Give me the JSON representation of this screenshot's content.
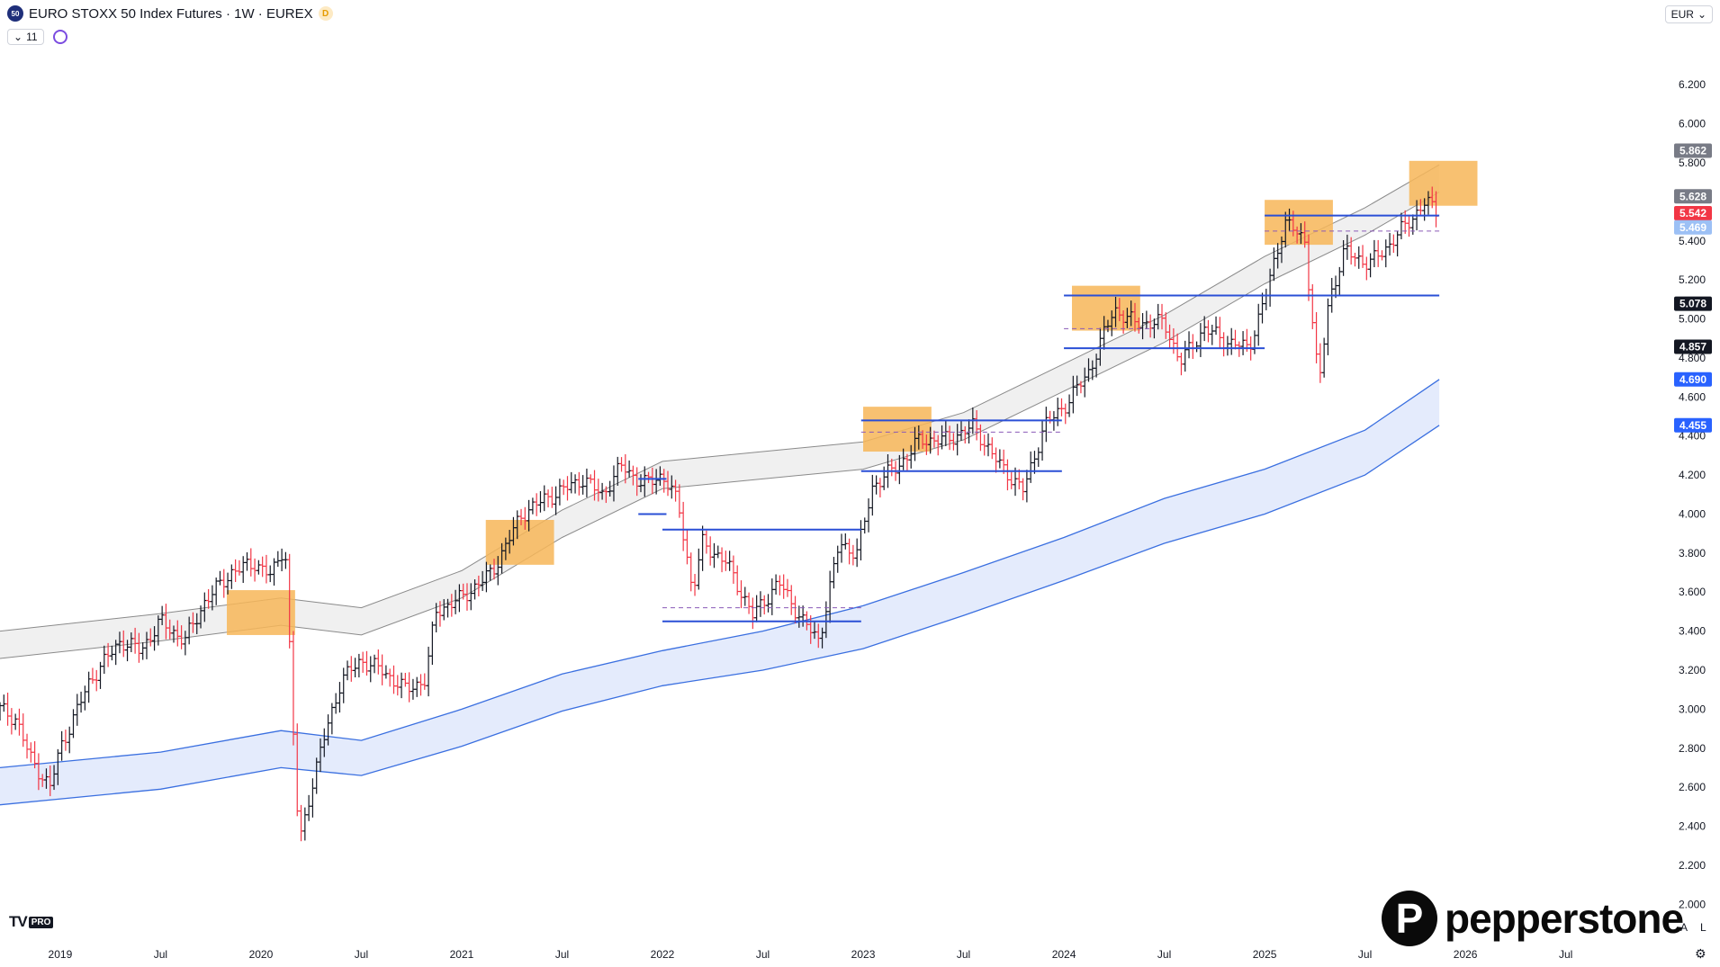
{
  "header": {
    "symbol_badge": "50",
    "title": "EURO STOXX 50 Index Futures · 1W · EUREX",
    "data_badge": "D",
    "indicators_count": "11"
  },
  "currency": "EUR",
  "branding": {
    "tv_mark": "TV",
    "tv_pro": "PRO",
    "broker_mark": "P",
    "broker": "pepperstone"
  },
  "scale_buttons": [
    "A",
    "L"
  ],
  "icons": [
    "chevron-down-icon",
    "indicator-sync-icon",
    "settings-gear-icon"
  ],
  "colors": {
    "up": "#131722",
    "down": "#f23645",
    "hline": "#2a4fd6",
    "zone": "#f7b658",
    "envelope_fill": "#dfe8fb",
    "envelope_line": "#3a6fe0",
    "upper_band_fill": "#ececec",
    "upper_band_line": "#8a8a8a"
  },
  "chart_data": {
    "type": "candlestick",
    "timeframe": "1W",
    "currency": "EUR",
    "x_ticks": [
      "2019",
      "Jul",
      "2020",
      "Jul",
      "2021",
      "Jul",
      "2022",
      "Jul",
      "2023",
      "Jul",
      "2024",
      "Jul",
      "2025",
      "Jul",
      "2026",
      "Jul"
    ],
    "x_tick_dates": [
      2019.0,
      2019.5,
      2020.0,
      2020.5,
      2021.0,
      2021.5,
      2022.0,
      2022.5,
      2023.0,
      2023.5,
      2024.0,
      2024.5,
      2025.0,
      2025.5,
      2026.0,
      2026.5
    ],
    "y_ticks": [
      "2.000",
      "2.200",
      "2.400",
      "2.600",
      "2.800",
      "3.000",
      "3.200",
      "3.400",
      "3.600",
      "3.800",
      "4.000",
      "4.200",
      "4.400",
      "4.600",
      "4.800",
      "5.000",
      "5.200",
      "5.400",
      "5.800",
      "6.000",
      "6.200"
    ],
    "y_tick_values": [
      2000,
      2200,
      2400,
      2600,
      2800,
      3000,
      3200,
      3400,
      3600,
      3800,
      4000,
      4200,
      4400,
      4600,
      4800,
      5000,
      5200,
      5400,
      5800,
      6000,
      6200
    ],
    "ylim": [
      1840,
      6450
    ],
    "xlim": [
      2018.7,
      2026.95
    ],
    "price_labels": [
      {
        "text": "5.862",
        "value": 5862,
        "color": "#787b86"
      },
      {
        "text": "5.628",
        "value": 5628,
        "color": "#787b86"
      },
      {
        "text": "5.542",
        "value": 5542,
        "color": "#f23645"
      },
      {
        "text": "5.469",
        "value": 5469,
        "color": "#9cc0f5"
      },
      {
        "text": "5.078",
        "value": 5078,
        "color": "#131722"
      },
      {
        "text": "4.857",
        "value": 4857,
        "color": "#131722"
      },
      {
        "text": "4.690",
        "value": 4690,
        "color": "#2962ff"
      },
      {
        "text": "4.455",
        "value": 4455,
        "color": "#2962ff"
      }
    ],
    "close_anchors": [
      [
        2018.7,
        3000
      ],
      [
        2018.78,
        2950
      ],
      [
        2018.85,
        2750
      ],
      [
        2018.95,
        2600
      ],
      [
        2019.0,
        2800
      ],
      [
        2019.15,
        3150
      ],
      [
        2019.3,
        3350
      ],
      [
        2019.4,
        3300
      ],
      [
        2019.5,
        3450
      ],
      [
        2019.62,
        3350
      ],
      [
        2019.72,
        3550
      ],
      [
        2019.85,
        3700
      ],
      [
        2019.97,
        3750
      ],
      [
        2020.05,
        3680
      ],
      [
        2020.12,
        3850
      ],
      [
        2020.16,
        2900
      ],
      [
        2020.19,
        2300
      ],
      [
        2020.24,
        2550
      ],
      [
        2020.3,
        2800
      ],
      [
        2020.4,
        3150
      ],
      [
        2020.5,
        3250
      ],
      [
        2020.6,
        3200
      ],
      [
        2020.72,
        3100
      ],
      [
        2020.82,
        3150
      ],
      [
        2020.87,
        3500
      ],
      [
        2021.0,
        3570
      ],
      [
        2021.15,
        3700
      ],
      [
        2021.3,
        4000
      ],
      [
        2021.42,
        4080
      ],
      [
        2021.5,
        4120
      ],
      [
        2021.6,
        4180
      ],
      [
        2021.7,
        4100
      ],
      [
        2021.8,
        4250
      ],
      [
        2021.9,
        4150
      ],
      [
        2022.0,
        4200
      ],
      [
        2022.08,
        4050
      ],
      [
        2022.15,
        3600
      ],
      [
        2022.2,
        3850
      ],
      [
        2022.32,
        3750
      ],
      [
        2022.45,
        3480
      ],
      [
        2022.58,
        3650
      ],
      [
        2022.7,
        3450
      ],
      [
        2022.78,
        3350
      ],
      [
        2022.88,
        3850
      ],
      [
        2022.97,
        3800
      ],
      [
        2023.05,
        4150
      ],
      [
        2023.18,
        4250
      ],
      [
        2023.28,
        4380
      ],
      [
        2023.42,
        4380
      ],
      [
        2023.55,
        4450
      ],
      [
        2023.68,
        4250
      ],
      [
        2023.8,
        4120
      ],
      [
        2023.9,
        4450
      ],
      [
        2024.0,
        4550
      ],
      [
        2024.12,
        4720
      ],
      [
        2024.25,
        5050
      ],
      [
        2024.35,
        4980
      ],
      [
        2024.5,
        4980
      ],
      [
        2024.58,
        4780
      ],
      [
        2024.7,
        4950
      ],
      [
        2024.82,
        4880
      ],
      [
        2024.92,
        4850
      ],
      [
        2025.0,
        5100
      ],
      [
        2025.1,
        5500
      ],
      [
        2025.2,
        5400
      ],
      [
        2025.27,
        4650
      ],
      [
        2025.32,
        5100
      ],
      [
        2025.4,
        5350
      ],
      [
        2025.52,
        5280
      ],
      [
        2025.62,
        5380
      ],
      [
        2025.72,
        5500
      ],
      [
        2025.8,
        5600
      ],
      [
        2025.87,
        5540
      ]
    ],
    "upper_band_center": [
      [
        2018.7,
        3330
      ],
      [
        2019.5,
        3420
      ],
      [
        2020.1,
        3500
      ],
      [
        2020.5,
        3450
      ],
      [
        2021.0,
        3640
      ],
      [
        2021.5,
        3950
      ],
      [
        2022.0,
        4200
      ],
      [
        2022.5,
        4250
      ],
      [
        2023.0,
        4300
      ],
      [
        2023.5,
        4450
      ],
      [
        2024.0,
        4700
      ],
      [
        2024.5,
        4950
      ],
      [
        2025.0,
        5250
      ],
      [
        2025.5,
        5500
      ],
      [
        2025.87,
        5720
      ]
    ],
    "upper_band_half_width": 70,
    "envelope_top": [
      [
        2018.7,
        2700
      ],
      [
        2019.5,
        2780
      ],
      [
        2020.1,
        2890
      ],
      [
        2020.5,
        2840
      ],
      [
        2021.0,
        3000
      ],
      [
        2021.5,
        3180
      ],
      [
        2022.0,
        3300
      ],
      [
        2022.5,
        3400
      ],
      [
        2023.0,
        3530
      ],
      [
        2023.5,
        3700
      ],
      [
        2024.0,
        3880
      ],
      [
        2024.5,
        4080
      ],
      [
        2025.0,
        4230
      ],
      [
        2025.5,
        4430
      ],
      [
        2025.87,
        4690
      ]
    ],
    "envelope_bottom": [
      [
        2018.7,
        2510
      ],
      [
        2019.5,
        2590
      ],
      [
        2020.1,
        2700
      ],
      [
        2020.5,
        2660
      ],
      [
        2021.0,
        2810
      ],
      [
        2021.5,
        2990
      ],
      [
        2022.0,
        3120
      ],
      [
        2022.5,
        3200
      ],
      [
        2023.0,
        3310
      ],
      [
        2023.5,
        3480
      ],
      [
        2024.0,
        3660
      ],
      [
        2024.5,
        3850
      ],
      [
        2025.0,
        4000
      ],
      [
        2025.5,
        4200
      ],
      [
        2025.87,
        4455
      ]
    ],
    "horizontal_levels": [
      {
        "x0": 2021.88,
        "x1": 2022.02,
        "y": 4180
      },
      {
        "x0": 2021.88,
        "x1": 2022.02,
        "y": 4000
      },
      {
        "x0": 2022.0,
        "x1": 2022.99,
        "y": 3920
      },
      {
        "x0": 2022.0,
        "x1": 2022.99,
        "y": 3450
      },
      {
        "x0": 2022.99,
        "x1": 2023.99,
        "y": 4480
      },
      {
        "x0": 2022.99,
        "x1": 2023.99,
        "y": 4220
      },
      {
        "x0": 2024.0,
        "x1": 2025.87,
        "y": 5120
      },
      {
        "x0": 2024.0,
        "x1": 2025.0,
        "y": 4850
      },
      {
        "x0": 2025.0,
        "x1": 2025.87,
        "y": 5530
      }
    ],
    "dashed_levels": [
      {
        "x0": 2022.0,
        "x1": 2022.99,
        "y": 3520
      },
      {
        "x0": 2022.99,
        "x1": 2023.99,
        "y": 4420
      },
      {
        "x0": 2024.0,
        "x1": 2024.45,
        "y": 4950
      },
      {
        "x0": 2025.0,
        "x1": 2025.87,
        "y": 5450
      }
    ],
    "highlight_zones": [
      {
        "x0": 2019.83,
        "x1": 2020.17,
        "y0": 3380,
        "y1": 3610
      },
      {
        "x0": 2021.12,
        "x1": 2021.46,
        "y0": 3740,
        "y1": 3970
      },
      {
        "x0": 2023.0,
        "x1": 2023.34,
        "y0": 4320,
        "y1": 4550
      },
      {
        "x0": 2024.04,
        "x1": 2024.38,
        "y0": 4940,
        "y1": 5170
      },
      {
        "x0": 2025.0,
        "x1": 2025.34,
        "y0": 5380,
        "y1": 5610
      },
      {
        "x0": 2025.72,
        "x1": 2026.06,
        "y0": 5580,
        "y1": 5810
      }
    ]
  }
}
